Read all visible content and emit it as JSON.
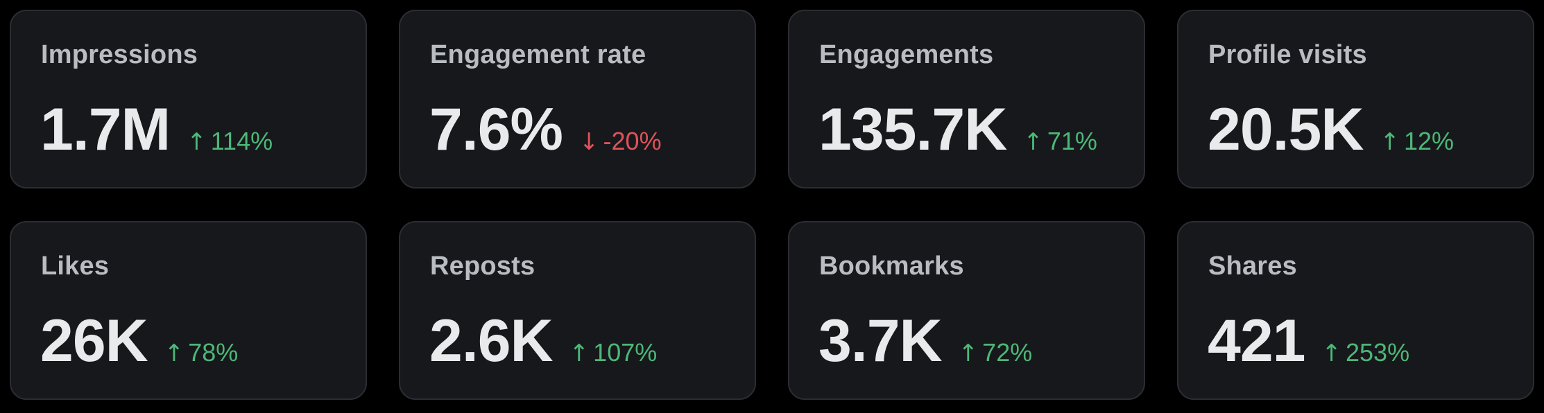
{
  "colors": {
    "background": "#000000",
    "card_background": "#17181c",
    "card_border": "#2b2d32",
    "label": "#b9bcc1",
    "value": "#e9eaec",
    "positive": "#4cb877",
    "negative": "#e0525a"
  },
  "metrics": [
    {
      "label": "Impressions",
      "value": "1.7M",
      "direction": "up",
      "arrow": "↑",
      "change": "114%"
    },
    {
      "label": "Engagement rate",
      "value": "7.6%",
      "direction": "down",
      "arrow": "↓",
      "change": "-20%"
    },
    {
      "label": "Engagements",
      "value": "135.7K",
      "direction": "up",
      "arrow": "↑",
      "change": "71%"
    },
    {
      "label": "Profile visits",
      "value": "20.5K",
      "direction": "up",
      "arrow": "↑",
      "change": "12%"
    },
    {
      "label": "Likes",
      "value": "26K",
      "direction": "up",
      "arrow": "↑",
      "change": "78%"
    },
    {
      "label": "Reposts",
      "value": "2.6K",
      "direction": "up",
      "arrow": "↑",
      "change": "107%"
    },
    {
      "label": "Bookmarks",
      "value": "3.7K",
      "direction": "up",
      "arrow": "↑",
      "change": "72%"
    },
    {
      "label": "Shares",
      "value": "421",
      "direction": "up",
      "arrow": "↑",
      "change": "253%"
    }
  ]
}
